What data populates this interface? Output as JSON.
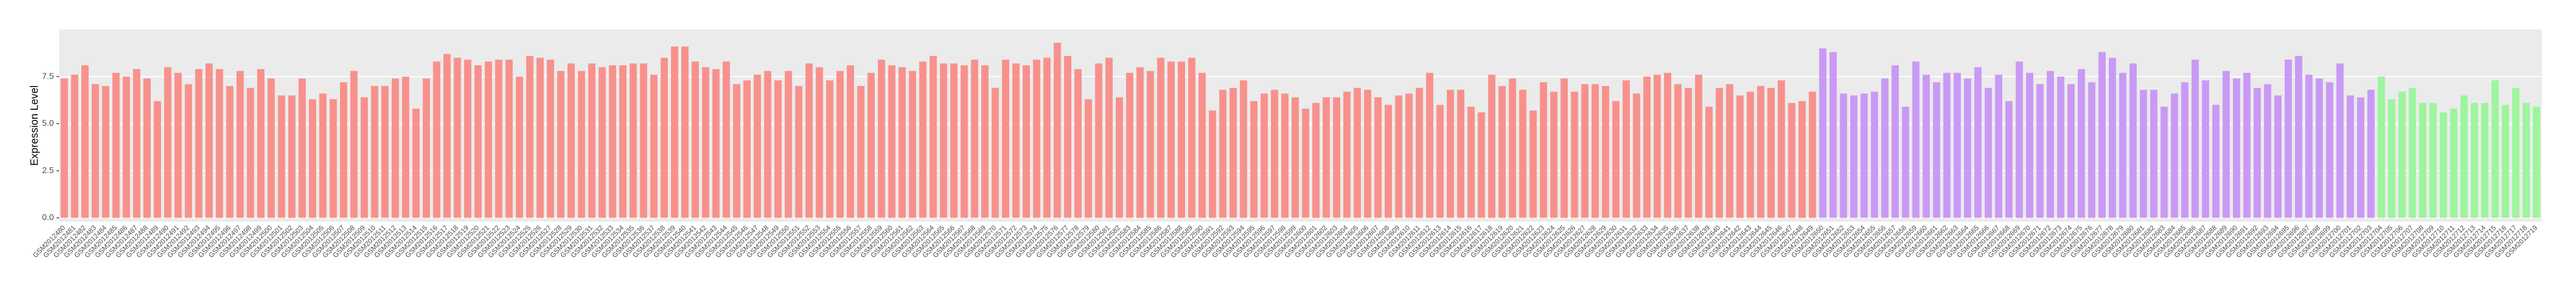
{
  "chart_data": {
    "type": "bar",
    "y_label": "Expression Level",
    "categories": [
      "GSM2012480",
      "GSM2012481",
      "GSM2012482",
      "GSM2012483",
      "GSM2012484",
      "GSM2012485",
      "GSM2012486",
      "GSM2012487",
      "GSM2012488",
      "GSM2012489",
      "GSM2012490",
      "GSM2012491",
      "GSM2012492",
      "GSM2012493",
      "GSM2012494",
      "GSM2012495",
      "GSM2012496",
      "GSM2012497",
      "GSM2012498",
      "GSM2012499",
      "GSM2012500",
      "GSM2012501",
      "GSM2012502",
      "GSM2012503",
      "GSM2012504",
      "GSM2012505",
      "GSM2012506",
      "GSM2012507",
      "GSM2012508",
      "GSM2012509",
      "GSM2012510",
      "GSM2012511",
      "GSM2012512",
      "GSM2012513",
      "GSM2012514",
      "GSM2012515",
      "GSM2012516",
      "GSM2012517",
      "GSM2012518",
      "GSM2012519",
      "GSM2012520",
      "GSM2012521",
      "GSM2012522",
      "GSM2012523",
      "GSM2012524",
      "GSM2012525",
      "GSM2012526",
      "GSM2012527",
      "GSM2012528",
      "GSM2012529",
      "GSM2012530",
      "GSM2012531",
      "GSM2012532",
      "GSM2012533",
      "GSM2012534",
      "GSM2012535",
      "GSM2012536",
      "GSM2012537",
      "GSM2012538",
      "GSM2012539",
      "GSM2012540",
      "GSM2012541",
      "GSM2012542",
      "GSM2012543",
      "GSM2012544",
      "GSM2012545",
      "GSM2012546",
      "GSM2012547",
      "GSM2012548",
      "GSM2012549",
      "GSM2012550",
      "GSM2012551",
      "GSM2012552",
      "GSM2012553",
      "GSM2012554",
      "GSM2012555",
      "GSM2012556",
      "GSM2012557",
      "GSM2012558",
      "GSM2012559",
      "GSM2012560",
      "GSM2012561",
      "GSM2012562",
      "GSM2012563",
      "GSM2012564",
      "GSM2012565",
      "GSM2012566",
      "GSM2012567",
      "GSM2012568",
      "GSM2012569",
      "GSM2012570",
      "GSM2012571",
      "GSM2012572",
      "GSM2012573",
      "GSM2012574",
      "GSM2012575",
      "GSM2012576",
      "GSM2012577",
      "GSM2012578",
      "GSM2012579",
      "GSM2012580",
      "GSM2012581",
      "GSM2012582",
      "GSM2012583",
      "GSM2012584",
      "GSM2012585",
      "GSM2012586",
      "GSM2012587",
      "GSM2012588",
      "GSM2012589",
      "GSM2012590",
      "GSM2012591",
      "GSM2012592",
      "GSM2012593",
      "GSM2012594",
      "GSM2012595",
      "GSM2012596",
      "GSM2012597",
      "GSM2012598",
      "GSM2012599",
      "GSM2012600",
      "GSM2012601",
      "GSM2012602",
      "GSM2012603",
      "GSM2012604",
      "GSM2012605",
      "GSM2012606",
      "GSM2012607",
      "GSM2012608",
      "GSM2012609",
      "GSM2012610",
      "GSM2012611",
      "GSM2012612",
      "GSM2012613",
      "GSM2012614",
      "GSM2012615",
      "GSM2012616",
      "GSM2012617",
      "GSM2012618",
      "GSM2012619",
      "GSM2012620",
      "GSM2012621",
      "GSM2012622",
      "GSM2012623",
      "GSM2012624",
      "GSM2012625",
      "GSM2012626",
      "GSM2012627",
      "GSM2012628",
      "GSM2012629",
      "GSM2012630",
      "GSM2012631",
      "GSM2012632",
      "GSM2012633",
      "GSM2012634",
      "GSM2012635",
      "GSM2012636",
      "GSM2012637",
      "GSM2012638",
      "GSM2012639",
      "GSM2012640",
      "GSM2012641",
      "GSM2012642",
      "GSM2012643",
      "GSM2012644",
      "GSM2012645",
      "GSM2012646",
      "GSM2012647",
      "GSM2012648",
      "GSM2012649",
      "GSM2012650",
      "GSM2012651",
      "GSM2012652",
      "GSM2012653",
      "GSM2012654",
      "GSM2012655",
      "GSM2012656",
      "GSM2012657",
      "GSM2012658",
      "GSM2012659",
      "GSM2012660",
      "GSM2012661",
      "GSM2012662",
      "GSM2012663",
      "GSM2012664",
      "GSM2012665",
      "GSM2012666",
      "GSM2012667",
      "GSM2012668",
      "GSM2012669",
      "GSM2012670",
      "GSM2012671",
      "GSM2012672",
      "GSM2012673",
      "GSM2012674",
      "GSM2012675",
      "GSM2012676",
      "GSM2012677",
      "GSM2012678",
      "GSM2012679",
      "GSM2012680",
      "GSM2012681",
      "GSM2012682",
      "GSM2012683",
      "GSM2012684",
      "GSM2012685",
      "GSM2012686",
      "GSM2012687",
      "GSM2012688",
      "GSM2012689",
      "GSM2012690",
      "GSM2012691",
      "GSM2012692",
      "GSM2012693",
      "GSM2012694",
      "GSM2012695",
      "GSM2012696",
      "GSM2012697",
      "GSM2012698",
      "GSM2012699",
      "GSM2012700",
      "GSM2012701",
      "GSM2012702",
      "GSM2012703",
      "GSM2012704",
      "GSM2012705",
      "GSM2012706",
      "GSM2012707",
      "GSM2012708",
      "GSM2012709",
      "GSM2012710",
      "GSM2012711",
      "GSM2012712",
      "GSM2012713",
      "GSM2012714",
      "GSM2012715",
      "GSM2012716",
      "GSM2012717",
      "GSM2012718",
      "GSM2012719"
    ],
    "values": [
      7.4,
      7.6,
      8.1,
      7.1,
      7.0,
      7.7,
      7.5,
      7.9,
      7.4,
      6.2,
      8.0,
      7.7,
      7.1,
      7.9,
      8.2,
      7.9,
      7.0,
      7.8,
      6.9,
      7.9,
      7.4,
      6.5,
      6.5,
      7.4,
      6.3,
      6.6,
      6.3,
      7.2,
      7.8,
      6.4,
      7.0,
      7.0,
      7.4,
      7.5,
      5.8,
      7.4,
      8.3,
      8.7,
      8.5,
      8.4,
      8.1,
      8.3,
      8.4,
      8.4,
      7.5,
      8.6,
      8.5,
      8.4,
      7.8,
      8.2,
      7.8,
      8.2,
      8.0,
      8.1,
      8.1,
      8.2,
      8.2,
      7.6,
      8.5,
      9.1,
      9.1,
      8.3,
      8.0,
      7.9,
      8.3,
      7.1,
      7.3,
      7.6,
      7.8,
      7.3,
      7.8,
      7.0,
      8.2,
      8.0,
      7.3,
      7.8,
      8.1,
      7.0,
      7.7,
      8.4,
      8.1,
      8.0,
      7.8,
      8.3,
      8.6,
      8.2,
      8.2,
      8.1,
      8.4,
      8.1,
      6.9,
      8.4,
      8.2,
      8.1,
      8.4,
      8.5,
      9.3,
      8.6,
      7.9,
      6.3,
      8.2,
      8.5,
      6.4,
      7.7,
      8.0,
      7.8,
      8.5,
      8.3,
      8.3,
      8.5,
      7.7,
      5.7,
      6.8,
      6.9,
      7.3,
      6.2,
      6.6,
      6.8,
      6.6,
      6.4,
      5.8,
      6.1,
      6.4,
      6.4,
      6.7,
      6.9,
      6.8,
      6.4,
      6.0,
      6.5,
      6.6,
      6.9,
      7.7,
      6.0,
      6.8,
      6.8,
      5.9,
      5.6,
      7.6,
      7.0,
      7.4,
      6.8,
      5.7,
      7.2,
      6.7,
      7.4,
      6.7,
      7.1,
      7.1,
      7.0,
      6.2,
      7.3,
      6.6,
      7.5,
      7.6,
      7.7,
      7.1,
      6.9,
      7.6,
      5.9,
      6.9,
      7.1,
      6.5,
      6.7,
      7.0,
      6.9,
      7.3,
      6.1,
      6.2,
      6.7,
      9.0,
      8.8,
      6.6,
      6.5,
      6.6,
      6.7,
      7.4,
      8.1,
      5.9,
      8.3,
      7.6,
      7.2,
      7.7,
      7.7,
      7.4,
      8.0,
      6.9,
      7.6,
      6.2,
      8.3,
      7.7,
      7.1,
      7.8,
      7.5,
      7.1,
      7.9,
      7.2,
      8.8,
      8.5,
      7.7,
      8.2,
      6.8,
      6.8,
      5.9,
      6.6,
      7.2,
      8.4,
      7.3,
      6.0,
      7.8,
      7.4,
      7.7,
      6.9,
      7.1,
      6.5,
      8.4,
      8.6,
      7.6,
      7.4,
      7.2,
      8.2,
      6.5,
      6.4,
      6.8,
      7.5,
      6.3,
      6.7,
      6.9,
      6.1,
      6.1,
      5.6,
      5.8,
      6.5,
      6.1,
      6.1,
      7.3,
      6.0,
      6.9,
      6.1,
      5.9
    ],
    "colors": [
      "#f8918c",
      "#f8918c",
      "#f8918c",
      "#f8918c",
      "#f8918c",
      "#f8918c",
      "#f8918c",
      "#f8918c",
      "#f8918c",
      "#f8918c",
      "#f8918c",
      "#f8918c",
      "#f8918c",
      "#f8918c",
      "#f8918c",
      "#f8918c",
      "#f8918c",
      "#f8918c",
      "#f8918c",
      "#f8918c",
      "#f8918c",
      "#f8918c",
      "#f8918c",
      "#f8918c",
      "#f8918c",
      "#f8918c",
      "#f8918c",
      "#f8918c",
      "#f8918c",
      "#f8918c",
      "#f8918c",
      "#f8918c",
      "#f8918c",
      "#f8918c",
      "#f8918c",
      "#f8918c",
      "#f8918c",
      "#f8918c",
      "#f8918c",
      "#f8918c",
      "#f8918c",
      "#f8918c",
      "#f8918c",
      "#f8918c",
      "#f8918c",
      "#f8918c",
      "#f8918c",
      "#f8918c",
      "#f8918c",
      "#f8918c",
      "#f8918c",
      "#f8918c",
      "#f8918c",
      "#f8918c",
      "#f8918c",
      "#f8918c",
      "#f8918c",
      "#f8918c",
      "#f8918c",
      "#f8918c",
      "#f8918c",
      "#f8918c",
      "#f8918c",
      "#f8918c",
      "#f8918c",
      "#f8918c",
      "#f8918c",
      "#f8918c",
      "#f8918c",
      "#f8918c",
      "#f8918c",
      "#f8918c",
      "#f8918c",
      "#f8918c",
      "#f8918c",
      "#f8918c",
      "#f8918c",
      "#f8918c",
      "#f8918c",
      "#f8918c",
      "#f8918c",
      "#f8918c",
      "#f8918c",
      "#f8918c",
      "#f8918c",
      "#f8918c",
      "#f8918c",
      "#f8918c",
      "#f8918c",
      "#f8918c",
      "#f8918c",
      "#f8918c",
      "#f8918c",
      "#f8918c",
      "#f8918c",
      "#f8918c",
      "#f8918c",
      "#f8918c",
      "#f8918c",
      "#f8918c",
      "#f8918c",
      "#f8918c",
      "#f8918c",
      "#f8918c",
      "#f8918c",
      "#f8918c",
      "#f8918c",
      "#f8918c",
      "#f8918c",
      "#f8918c",
      "#f8918c",
      "#f8918c",
      "#f8918c",
      "#f8918c",
      "#f8918c",
      "#f8918c",
      "#f8918c",
      "#f8918c",
      "#f8918c",
      "#f8918c",
      "#f8918c",
      "#f8918c",
      "#f8918c",
      "#f8918c",
      "#f8918c",
      "#f8918c",
      "#f8918c",
      "#f8918c",
      "#f8918c",
      "#f8918c",
      "#f8918c",
      "#f8918c",
      "#f8918c",
      "#f8918c",
      "#f8918c",
      "#f8918c",
      "#f8918c",
      "#f8918c",
      "#f8918c",
      "#f8918c",
      "#f8918c",
      "#f8918c",
      "#f8918c",
      "#f8918c",
      "#f8918c",
      "#f8918c",
      "#f8918c",
      "#f8918c",
      "#f8918c",
      "#f8918c",
      "#f8918c",
      "#f8918c",
      "#f8918c",
      "#f8918c",
      "#f8918c",
      "#f8918c",
      "#f8918c",
      "#f8918c",
      "#f8918c",
      "#f8918c",
      "#f8918c",
      "#f8918c",
      "#f8918c",
      "#f8918c",
      "#f8918c",
      "#f8918c",
      "#f8918c",
      "#f8918c",
      "#f8918c",
      "#f8918c",
      "#c99af5",
      "#c99af5",
      "#c99af5",
      "#c99af5",
      "#c99af5",
      "#c99af5",
      "#c99af5",
      "#c99af5",
      "#c99af5",
      "#c99af5",
      "#c99af5",
      "#c99af5",
      "#c99af5",
      "#c99af5",
      "#c99af5",
      "#c99af5",
      "#c99af5",
      "#c99af5",
      "#c99af5",
      "#c99af5",
      "#c99af5",
      "#c99af5",
      "#c99af5",
      "#c99af5",
      "#c99af5",
      "#c99af5",
      "#c99af5",
      "#c99af5",
      "#c99af5",
      "#c99af5",
      "#c99af5",
      "#c99af5",
      "#c99af5",
      "#c99af5",
      "#c99af5",
      "#c99af5",
      "#c99af5",
      "#c99af5",
      "#c99af5",
      "#c99af5",
      "#c99af5",
      "#c99af5",
      "#c99af5",
      "#c99af5",
      "#c99af5",
      "#c99af5",
      "#c99af5",
      "#c99af5",
      "#c99af5",
      "#c99af5",
      "#c99af5",
      "#c99af5",
      "#c99af5",
      "#c99af5",
      "#9df59d",
      "#9df59d",
      "#9df59d",
      "#9df59d",
      "#9df59d",
      "#9df59d",
      "#9df59d",
      "#9df59d",
      "#9df59d",
      "#9df59d",
      "#9df59d",
      "#9df59d",
      "#9df59d",
      "#9df59d",
      "#9df59d",
      "#9df59d"
    ],
    "ylim": [
      -0.2,
      10
    ],
    "yticks": [
      {
        "value": 0,
        "label": "0.0"
      },
      2.5,
      {
        "value": 5,
        "label": "5.0"
      },
      7.5
    ],
    "grid": true
  }
}
